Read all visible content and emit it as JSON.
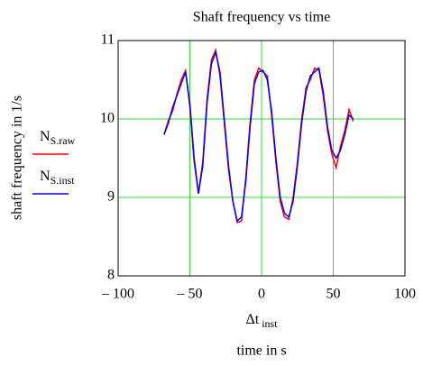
{
  "chart_data": {
    "type": "line",
    "title": "Shaft frequency vs time",
    "ylabel": "shaft frequency in 1/s",
    "xlabel": "Δt inst",
    "xlabel_units": "time in s",
    "xlim": [
      -100,
      100
    ],
    "ylim": [
      8,
      11
    ],
    "xticks": [
      {
        "value": -100,
        "label": "– 100"
      },
      {
        "value": -50,
        "label": "– 50"
      },
      0,
      50,
      100
    ],
    "yticks": [
      8,
      9,
      10,
      11
    ],
    "grid": true,
    "grid_color": "#33dd33",
    "x": [
      -68,
      -65,
      -62,
      -59,
      -56,
      -53,
      -50,
      -47,
      -44,
      -41,
      -38,
      -35,
      -32,
      -29,
      -26,
      -23,
      -20,
      -17,
      -14,
      -11,
      -8,
      -5,
      -2,
      1,
      4,
      7,
      10,
      13,
      16,
      19,
      22,
      25,
      28,
      31,
      34,
      37,
      40,
      43,
      46,
      49,
      52,
      55,
      58,
      61,
      64
    ],
    "series": [
      {
        "name": "NS.raw",
        "color": "#ff0000",
        "values": [
          9.8,
          9.98,
          10.1,
          10.32,
          10.5,
          10.62,
          10.15,
          9.45,
          9.05,
          9.45,
          10.25,
          10.75,
          10.88,
          10.55,
          9.95,
          9.35,
          8.95,
          8.68,
          8.7,
          9.25,
          9.95,
          10.5,
          10.65,
          10.6,
          10.55,
          10.05,
          9.45,
          8.95,
          8.75,
          8.72,
          9.0,
          9.45,
          10.0,
          10.4,
          10.5,
          10.65,
          10.62,
          10.3,
          9.85,
          9.55,
          9.38,
          9.65,
          9.85,
          10.12,
          9.97
        ]
      },
      {
        "name": "NS.inst",
        "color": "#0000ff",
        "values": [
          9.8,
          9.95,
          10.15,
          10.3,
          10.45,
          10.6,
          10.2,
          9.5,
          9.05,
          9.4,
          10.2,
          10.7,
          10.85,
          10.6,
          10.0,
          9.4,
          8.95,
          8.7,
          8.75,
          9.2,
          9.9,
          10.45,
          10.6,
          10.62,
          10.5,
          10.1,
          9.5,
          9.0,
          8.8,
          8.75,
          8.95,
          9.4,
          9.95,
          10.35,
          10.55,
          10.6,
          10.65,
          10.35,
          9.9,
          9.6,
          9.5,
          9.6,
          9.8,
          10.05,
          10.0
        ]
      }
    ]
  }
}
